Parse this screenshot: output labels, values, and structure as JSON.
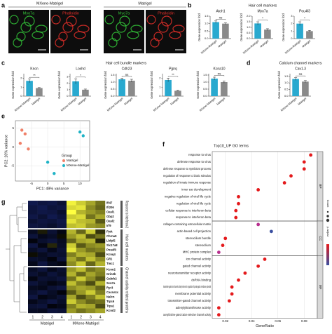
{
  "panels": [
    "a",
    "b",
    "c",
    "d",
    "e",
    "f",
    "g"
  ],
  "a": {
    "groups": [
      "MXene-Matrigel",
      "Matrigel"
    ],
    "stains": [
      "Myo7a",
      "Phalloidin"
    ]
  },
  "bar_y_label": "Gene expression fold",
  "bar_categories": [
    "MXene-Matrigel",
    "Matrigel"
  ],
  "bar_colors": [
    "#29a9cf",
    "#8a8a8a"
  ],
  "b": {
    "title": "Hair cell markers",
    "charts": [
      {
        "title": "Atoh1",
        "values": [
          1.1,
          1.0
        ],
        "errors": [
          0.08,
          0.05
        ],
        "significance": "ns",
        "ylim": [
          0,
          1.5
        ],
        "yticks": [
          {
            "value": 0,
            "label": "0.0"
          },
          0.5,
          {
            "value": 1,
            "label": "1.0"
          },
          1.5
        ]
      },
      {
        "title": "Myo7a",
        "values": [
          1.35,
          0.8
        ],
        "errors": [
          0.15,
          0.08
        ],
        "significance": "*",
        "ylim": [
          0,
          2
        ],
        "yticks": [
          {
            "value": 0,
            "label": "0.0"
          },
          0.5,
          {
            "value": 1,
            "label": "1.0"
          },
          1.5,
          {
            "value": 2,
            "label": "2.0"
          }
        ]
      },
      {
        "title": "Pou4f3",
        "values": [
          2.0,
          1.0
        ],
        "errors": [
          0.25,
          0.1
        ],
        "significance": "*",
        "ylim": [
          0,
          3
        ],
        "yticks": [
          0,
          1,
          2,
          3
        ]
      }
    ]
  },
  "c": {
    "title": "Hair cell bundle markers",
    "charts": [
      {
        "title": "Kncn",
        "values": [
          1.7,
          0.9
        ],
        "errors": [
          0.2,
          0.05
        ],
        "significance": "**",
        "ylim": [
          0,
          2.5
        ],
        "yticks": [
          0,
          1,
          2
        ]
      },
      {
        "title": "Loxhd",
        "values": [
          2.3,
          1.0
        ],
        "errors": [
          0.4,
          0.1
        ],
        "significance": "*",
        "ylim": [
          0,
          3.5
        ],
        "yticks": [
          0,
          1,
          2,
          3
        ]
      },
      {
        "title": "Cdh23",
        "values": [
          1.2,
          1.1
        ],
        "errors": [
          0.08,
          0.1
        ],
        "significance": "ns",
        "ylim": [
          0,
          1.6
        ],
        "yticks": [
          {
            "value": 0,
            "label": "0.0"
          },
          0.5,
          {
            "value": 1,
            "label": "1.0"
          },
          1.5
        ]
      },
      {
        "title": "Pjprq",
        "values": [
          1.8,
          0.6
        ],
        "errors": [
          0.2,
          0.05
        ],
        "significance": "**",
        "ylim": [
          0,
          2.5
        ],
        "yticks": [
          0,
          1,
          2
        ]
      },
      {
        "title": "Kcna10",
        "values": [
          1.25,
          1.0
        ],
        "errors": [
          0.1,
          0.08
        ],
        "significance": "ns",
        "ylim": [
          0,
          1.6
        ],
        "yticks": [
          {
            "value": 0,
            "label": "0.0"
          },
          0.5,
          {
            "value": 1,
            "label": "1.0"
          },
          1.5
        ]
      }
    ]
  },
  "d": {
    "title": "Calcium channel markers",
    "charts": [
      {
        "title": "Cav1.3",
        "values": [
          1.3,
          1.1
        ],
        "errors": [
          0.1,
          0.08
        ],
        "significance": "ns",
        "ylim": [
          0,
          1.7
        ],
        "yticks": [
          {
            "value": 0,
            "label": "0.0"
          },
          0.5,
          {
            "value": 1,
            "label": "1.0"
          },
          1.5
        ]
      }
    ]
  },
  "e": {
    "type": "scatter",
    "xlabel": "PC1: 49% variance",
    "ylabel": "PC2: 20% variance",
    "legend_title": "Group",
    "xlim": [
      -10,
      13
    ],
    "ylim": [
      -9,
      7
    ],
    "xticks": [
      -5,
      0,
      5,
      10
    ],
    "yticks": [
      -5,
      0,
      5
    ],
    "series": [
      {
        "name": "Matrigel",
        "color": "#f08068",
        "x": [
          -8,
          -7,
          -8.5,
          -6
        ],
        "y": [
          4.5,
          3.5,
          1,
          -0.5
        ]
      },
      {
        "name": "MXene-Matrigel",
        "color": "#1fb3c6",
        "x": [
          10,
          11,
          0,
          2
        ],
        "y": [
          4,
          3,
          -4,
          -7
        ]
      }
    ]
  },
  "f": {
    "type": "dot",
    "title": "Top10_UP GO terms",
    "xlabel": "GeneRatio",
    "xlim": [
      0.01,
      0.09
    ],
    "xticks": [
      0.02,
      0.04,
      0.06,
      0.08
    ],
    "legend_titles": [
      "Count",
      "p.adjust"
    ],
    "sections": [
      {
        "name": "BP",
        "terms": [
          "response to virus",
          "defense response to virus",
          "defense response to symbiont process",
          "regulation of response to biotic stimulus",
          "regulation of innate immune response",
          "inner ear development",
          "negative regulation of viral life cycle",
          "regulation of viral life cycle",
          "cellular response to interferon-beta",
          "response to interferon-beta"
        ],
        "values": [
          0.085,
          0.08,
          0.08,
          0.07,
          0.065,
          0.045,
          0.03,
          0.03,
          0.028,
          0.028
        ],
        "colors": [
          "#e41a1c",
          "#e41a1c",
          "#e41a1c",
          "#e41a1c",
          "#e41a1c",
          "#e41a1c",
          "#e41a1c",
          "#e41a1c",
          "#e41a1c",
          "#e41a1c"
        ]
      },
      {
        "name": "CC",
        "terms": [
          "collagen-containing extracellular matrix",
          "actin-based cell projection",
          "stereocilium bundle",
          "stereocilium",
          "MHC protein complex"
        ],
        "values": [
          0.045,
          0.055,
          0.02,
          0.018,
          0.015
        ],
        "colors": [
          "#b8308f",
          "#3a4fa0",
          "#e41a1c",
          "#e41a1c",
          "#b8308f"
        ]
      },
      {
        "name": "MF",
        "terms": [
          "ion channel activity",
          "gated channel activity",
          "neurotransmitter receptor activity",
          "dsRNA binding",
          "transmitter-gated ion channel activity involved in regulation of postsynaptic membrane potential",
          "membrane potential activity",
          "transmitter-gated channel activity",
          "adenylyltransferase activity",
          "acetylcholine-gated cation-selective channel activity"
        ],
        "values": [
          0.05,
          0.045,
          0.035,
          0.03,
          0.025,
          0.025,
          0.023,
          0.015,
          0.015
        ],
        "colors": [
          "#e41a1c",
          "#e41a1c",
          "#e41a1c",
          "#e41a1c",
          "#e41a1c",
          "#e41a1c",
          "#e41a1c",
          "#e41a1c",
          "#e41a1c"
        ]
      }
    ]
  },
  "g": {
    "type": "heatmap",
    "groups": [
      "Matrigel",
      "MXene-Matrigel"
    ],
    "columns": [
      1,
      2,
      3,
      4,
      1,
      2,
      3,
      4
    ],
    "modules": [
      {
        "name": "Response to Interferon-β",
        "genes": [
          "Ifi47",
          "Ifi206",
          "Oasl1",
          "Gbp2",
          "Oasl2",
          "Irf9"
        ],
        "values": [
          [
            -1.2,
            -1.0,
            -1.1,
            -0.8,
            1.9,
            1.6,
            1.3,
            0.9
          ],
          [
            -1.0,
            -1.2,
            -0.9,
            -1.0,
            1.7,
            1.8,
            1.1,
            0.8
          ],
          [
            -0.9,
            -1.1,
            -1.0,
            -0.7,
            2.0,
            1.4,
            1.2,
            1.0
          ],
          [
            -1.1,
            -0.8,
            -1.2,
            -0.9,
            1.6,
            1.7,
            0.9,
            1.3
          ],
          [
            -0.8,
            -1.0,
            -0.9,
            -1.1,
            1.8,
            1.5,
            1.4,
            0.7
          ],
          [
            -1.0,
            -0.9,
            -0.7,
            -1.0,
            1.5,
            1.6,
            1.2,
            1.1
          ]
        ]
      },
      {
        "name": "Hair cell markers",
        "genes": [
          "Pjvk",
          "Chrna9",
          "Lhfpl5",
          "Slc17a8",
          "Pou4f3",
          "Kcnq4",
          "Gfi1",
          "Tmc1"
        ],
        "values": [
          [
            -0.5,
            0.2,
            -0.8,
            -0.3,
            1.4,
            0.8,
            1.6,
            0.4
          ],
          [
            -0.9,
            -0.4,
            -0.6,
            0.1,
            1.2,
            1.5,
            0.6,
            0.9
          ],
          [
            -0.2,
            -0.7,
            -0.9,
            -0.5,
            0.8,
            1.3,
            1.4,
            0.3
          ],
          [
            -1.0,
            -0.3,
            0.3,
            -0.6,
            1.6,
            0.7,
            1.1,
            1.2
          ],
          [
            -0.6,
            -0.9,
            -0.4,
            -0.8,
            1.8,
            1.2,
            0.9,
            1.0
          ],
          [
            0.1,
            -0.5,
            -0.8,
            -0.7,
            1.0,
            1.4,
            1.3,
            0.6
          ],
          [
            -0.7,
            -0.6,
            -0.2,
            -0.9,
            1.3,
            0.9,
            1.5,
            1.1
          ],
          [
            -0.4,
            -1.0,
            -0.5,
            -0.3,
            1.1,
            1.6,
            0.8,
            1.4
          ]
        ]
      },
      {
        "name": "Channel activity related proteins",
        "genes": [
          "Kcnn2",
          "Grin2b",
          "Gabrb2",
          "Scn7a",
          "Ryr3",
          "Cacna1c",
          "Nalcn",
          "Trpc6",
          "Trpa1",
          "Kcnd2"
        ],
        "values": [
          [
            -0.6,
            -0.9,
            -0.4,
            -0.7,
            1.2,
            1.5,
            0.9,
            1.1
          ],
          [
            -0.8,
            -0.5,
            -0.9,
            -0.6,
            1.4,
            0.8,
            1.3,
            1.0
          ],
          [
            -0.3,
            -0.8,
            -0.7,
            -0.9,
            0.9,
            1.6,
            1.1,
            0.7
          ],
          [
            -0.9,
            -0.6,
            -0.3,
            -0.5,
            1.5,
            1.0,
            0.6,
            1.4
          ],
          [
            -0.5,
            -0.4,
            -0.8,
            -1.0,
            1.1,
            1.3,
            1.2,
            0.8
          ],
          [
            -0.7,
            -1.0,
            -0.6,
            -0.2,
            0.7,
            1.2,
            1.6,
            1.0
          ],
          [
            -1.0,
            -0.3,
            -0.5,
            -0.8,
            1.3,
            0.6,
            1.0,
            1.5
          ],
          [
            -0.4,
            -0.7,
            -1.0,
            -0.6,
            1.6,
            1.1,
            0.8,
            0.9
          ],
          [
            -0.8,
            -0.9,
            -0.2,
            -0.4,
            1.0,
            1.4,
            1.3,
            0.6
          ],
          [
            -0.6,
            -0.5,
            -0.9,
            -0.8,
            1.2,
            0.9,
            1.1,
            1.3
          ]
        ]
      }
    ]
  }
}
